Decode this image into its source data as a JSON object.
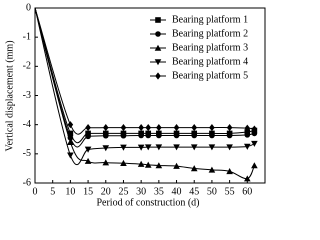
{
  "chart_data": {
    "type": "line",
    "x_label": "Period of construction (d)",
    "y_label": "Vertical displacement (mm)",
    "x": [
      0,
      10,
      15,
      20,
      25,
      30,
      32,
      35,
      40,
      45,
      50,
      55,
      60,
      62
    ],
    "series": [
      {
        "name": "Bearing platform 1",
        "color": "#000000",
        "marker": "square",
        "values": [
          0,
          -4.3,
          -4.3,
          -4.3,
          -4.3,
          -4.3,
          -4.3,
          -4.3,
          -4.3,
          -4.3,
          -4.3,
          -4.3,
          -4.25,
          -4.2
        ]
      },
      {
        "name": "Bearing platform 2",
        "color": "#000000",
        "marker": "circle",
        "values": [
          0,
          -4.45,
          -4.4,
          -4.38,
          -4.38,
          -4.37,
          -4.37,
          -4.37,
          -4.37,
          -4.37,
          -4.37,
          -4.37,
          -4.35,
          -4.3
        ]
      },
      {
        "name": "Bearing platform 3",
        "color": "#000000",
        "marker": "triangle-up",
        "values": [
          0,
          -4.6,
          -5.25,
          -5.3,
          -5.32,
          -5.35,
          -5.38,
          -5.4,
          -5.42,
          -5.5,
          -5.55,
          -5.6,
          -5.85,
          -5.4
        ]
      },
      {
        "name": "Bearing platform 4",
        "color": "#000000",
        "marker": "triangle-down",
        "values": [
          0,
          -5.05,
          -4.85,
          -4.8,
          -4.78,
          -4.78,
          -4.77,
          -4.77,
          -4.77,
          -4.77,
          -4.77,
          -4.77,
          -4.75,
          -4.65
        ]
      },
      {
        "name": "Bearing platform 5",
        "color": "#000000",
        "marker": "diamond",
        "values": [
          0,
          -4.0,
          -4.1,
          -4.1,
          -4.1,
          -4.1,
          -4.1,
          -4.1,
          -4.1,
          -4.1,
          -4.1,
          -4.1,
          -4.12,
          -4.15
        ]
      }
    ],
    "xlim": [
      0,
      65
    ],
    "xticks": [
      0,
      5,
      10,
      15,
      20,
      25,
      30,
      35,
      40,
      45,
      50,
      55,
      60
    ],
    "ylim": [
      -6,
      0
    ],
    "yticks": [
      0,
      -1,
      -2,
      -3,
      -4,
      -5,
      -6
    ],
    "legend": "upper right"
  }
}
